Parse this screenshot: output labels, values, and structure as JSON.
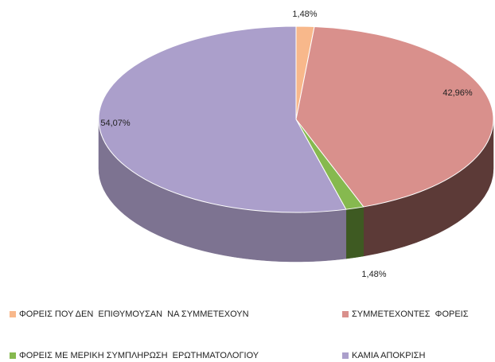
{
  "chart_data": {
    "type": "pie",
    "categories": [
      "ΦΟΡΕΙΣ ΠΟΥ ΔΕΝ  ΕΠΙΘΥΜΟΥΣΑΝ  ΝΑ ΣΥΜΜΕΤΕΧΟΥΝ",
      "ΣΥΜΜΕΤΕΧΟΝΤΕΣ  ΦΟΡΕΙΣ",
      "ΦΟΡΕΙΣ ΜΕ ΜΕΡΙΚΗ ΣΥΜΠΛΗΡΩΣΗ  ΕΡΩΤΗΜΑΤΟΛΟΓΙΟΥ",
      "ΚΑΜΙΑ ΑΠΟΚΡΙΣΗ"
    ],
    "values": [
      1.48,
      42.96,
      1.48,
      54.07
    ],
    "value_labels": [
      "1,48%",
      "42,96%",
      "1,48%",
      "54,07%"
    ],
    "colors": [
      "#f8b88b",
      "#d9908c",
      "#86b94f",
      "#ab9fcb"
    ],
    "side_colors": [
      "#b07a55",
      "#5c3a37",
      "#3e5a22",
      "#7d7391"
    ],
    "legend": "bottom"
  }
}
